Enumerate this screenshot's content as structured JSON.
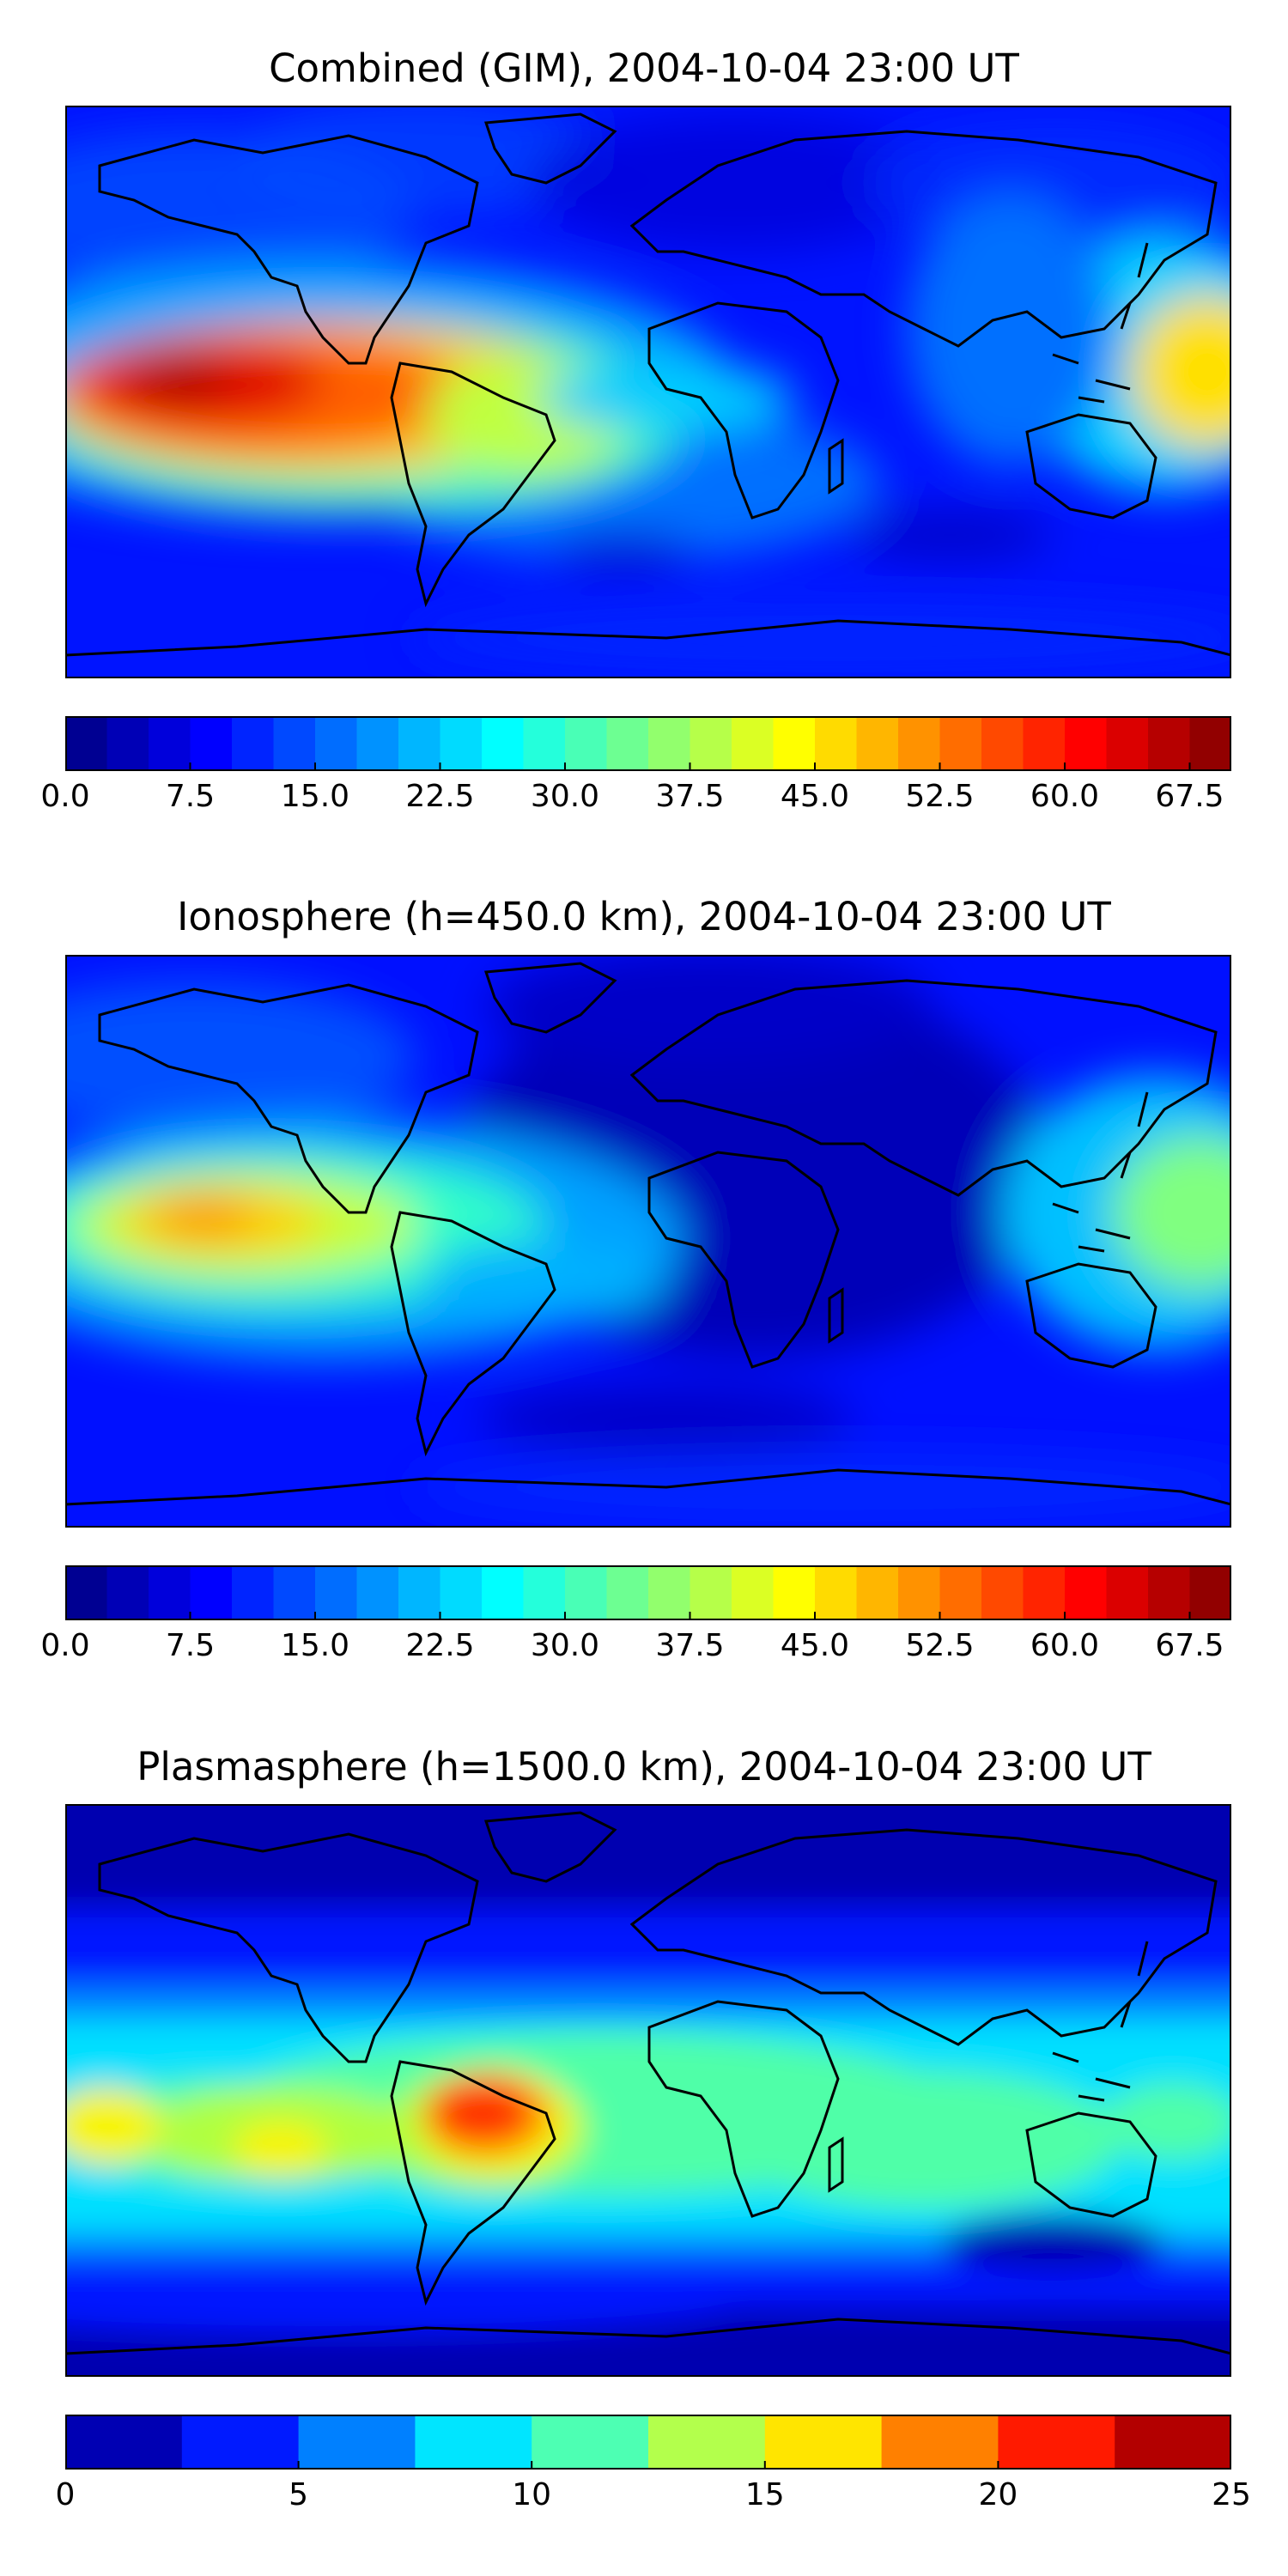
{
  "panels": [
    {
      "title": "Combined (GIM), 2004-10-04 23:00 UT",
      "colorbar": {
        "vmin": 0.0,
        "vmax": 70.0,
        "levels": 28,
        "ticks": [
          "0.0",
          "7.5",
          "15.0",
          "22.5",
          "30.0",
          "37.5",
          "45.0",
          "52.5",
          "60.0",
          "67.5"
        ],
        "tick_values": [
          0.0,
          7.5,
          15.0,
          22.5,
          30.0,
          37.5,
          45.0,
          52.5,
          60.0,
          67.5
        ]
      }
    },
    {
      "title": "Ionosphere  (h=450.0 km), 2004-10-04 23:00 UT",
      "colorbar": {
        "vmin": 0.0,
        "vmax": 70.0,
        "levels": 28,
        "ticks": [
          "0.0",
          "7.5",
          "15.0",
          "22.5",
          "30.0",
          "37.5",
          "45.0",
          "52.5",
          "60.0",
          "67.5"
        ],
        "tick_values": [
          0.0,
          7.5,
          15.0,
          22.5,
          30.0,
          37.5,
          45.0,
          52.5,
          60.0,
          67.5
        ]
      }
    },
    {
      "title": "Plasmasphere (h=1500.0 km), 2004-10-04 23:00 UT",
      "colorbar": {
        "vmin": 0,
        "vmax": 25,
        "levels": 10,
        "ticks": [
          "0",
          "5",
          "10",
          "15",
          "20",
          "25"
        ],
        "tick_values": [
          0,
          5,
          10,
          15,
          20,
          25
        ]
      }
    }
  ],
  "colormap": "jet"
}
